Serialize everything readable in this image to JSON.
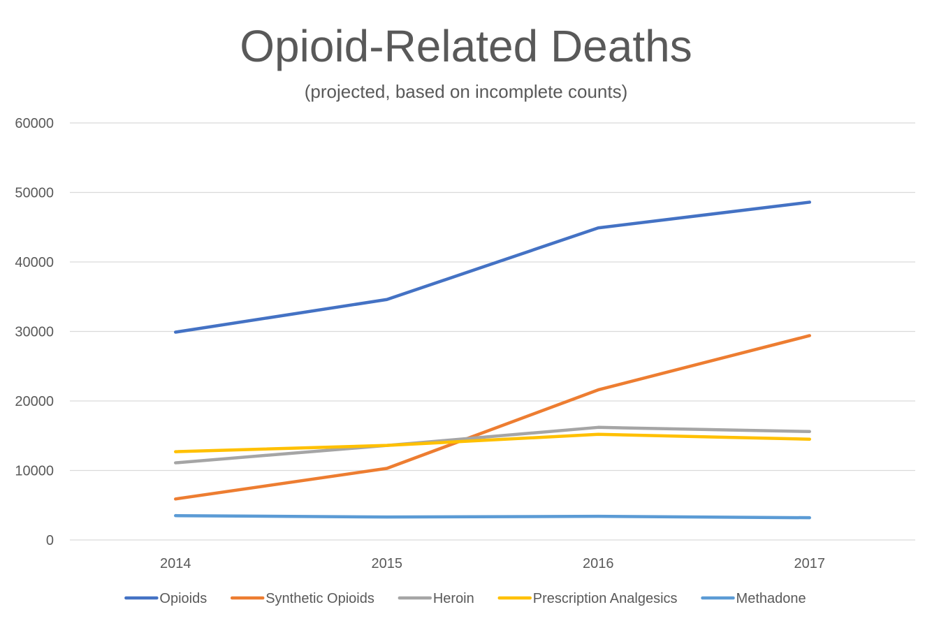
{
  "chart_data": {
    "type": "line",
    "title": "Opioid-Related Deaths",
    "subtitle": "(projected, based on incomplete counts)",
    "xlabel": "",
    "ylabel": "",
    "categories": [
      "2014",
      "2015",
      "2016",
      "2017"
    ],
    "ylim": [
      0,
      60000
    ],
    "yticks": [
      0,
      10000,
      20000,
      30000,
      40000,
      50000,
      60000
    ],
    "ytick_labels": [
      "0",
      "10000",
      "20000",
      "30000",
      "40000",
      "50000",
      "60000"
    ],
    "grid": true,
    "legend_position": "bottom",
    "series": [
      {
        "name": "Opioids",
        "color": "#4472c4",
        "values": [
          29900,
          34600,
          44900,
          48600
        ]
      },
      {
        "name": "Synthetic Opioids",
        "color": "#ed7d31",
        "values": [
          5900,
          10300,
          21600,
          29400
        ]
      },
      {
        "name": "Heroin",
        "color": "#a5a5a5",
        "values": [
          11100,
          13600,
          16200,
          15600
        ]
      },
      {
        "name": "Prescription Analgesics",
        "color": "#ffc000",
        "values": [
          12700,
          13600,
          15200,
          14500
        ]
      },
      {
        "name": "Methadone",
        "color": "#5b9bd5",
        "values": [
          3500,
          3300,
          3400,
          3200
        ]
      }
    ]
  }
}
